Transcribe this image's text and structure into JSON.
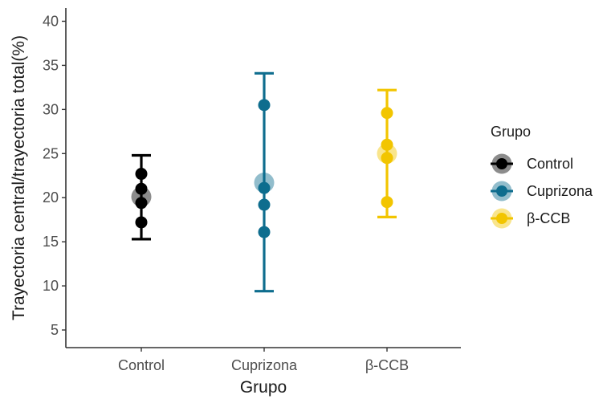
{
  "chart_data": {
    "type": "scatter",
    "xlabel": "Grupo",
    "ylabel": "Trayectoria central/trayectoria total(%)",
    "categories": [
      "Control",
      "Cuprizona",
      "β-CCB"
    ],
    "yticks": [
      5,
      10,
      15,
      20,
      25,
      30,
      35,
      40
    ],
    "ylim": [
      3,
      41.5
    ],
    "grid": false,
    "legend": {
      "title": "Grupo",
      "placement": "right",
      "entries": [
        "Control",
        "Cuprizona",
        "β-CCB"
      ]
    },
    "series": [
      {
        "name": "Control",
        "color": "#000000",
        "points": [
          22.7,
          21.0,
          19.4,
          17.2
        ],
        "mean": 20.1,
        "error_low": 15.3,
        "error_high": 24.8
      },
      {
        "name": "Cuprizona",
        "color": "#0e6d8e",
        "points": [
          30.5,
          21.1,
          19.2,
          16.1
        ],
        "mean": 21.7,
        "error_low": 9.4,
        "error_high": 34.1
      },
      {
        "name": "β-CCB",
        "color": "#f2c500",
        "points": [
          29.6,
          26.0,
          24.5,
          19.5
        ],
        "mean": 25.0,
        "error_low": 17.8,
        "error_high": 32.2
      }
    ]
  }
}
